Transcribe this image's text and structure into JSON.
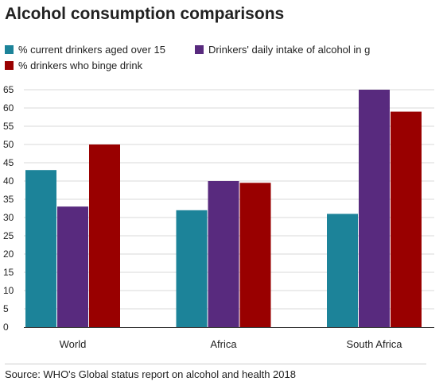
{
  "chart_data": {
    "type": "bar",
    "title": "Alcohol consumption comparisons",
    "categories": [
      "World",
      "Africa",
      "South Africa"
    ],
    "series": [
      {
        "name": "% current drinkers aged over 15",
        "values": [
          43,
          32,
          31
        ],
        "color": "#1c8399"
      },
      {
        "name": "Drinkers' daily intake of alcohol in g",
        "values": [
          33,
          40,
          65
        ],
        "color": "#582a7e"
      },
      {
        "name": "% drinkers who binge drink",
        "values": [
          50,
          39.5,
          59
        ],
        "color": "#990000"
      }
    ],
    "yticks": [
      "0",
      "5",
      "10",
      "15",
      "20",
      "25",
      "30",
      "35",
      "40",
      "45",
      "50",
      "55",
      "60",
      "65"
    ],
    "ylim": [
      0,
      65
    ],
    "grid": true,
    "legend_position": "top-left"
  },
  "source": "Source: WHO's Global status report on alcohol and health 2018"
}
